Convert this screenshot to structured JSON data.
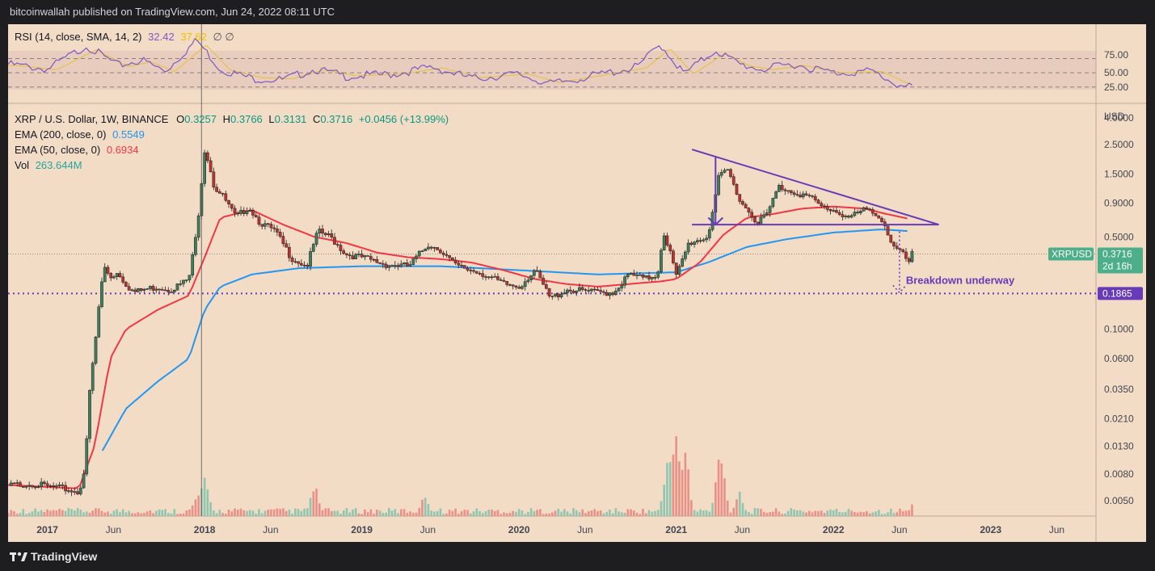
{
  "header": {
    "text": "bitcoinwallah published on TradingView.com, Jun 24, 2022 08:11 UTC"
  },
  "rsi": {
    "label": "RSI (14, close, SMA, 14, 2)",
    "value": "32.42",
    "sma_value": "37.62",
    "extra": "∅ ∅",
    "value_color": "#7e57c2",
    "sma_color": "#f0c000",
    "ticks": [
      "75.00",
      "50.00",
      "25.00"
    ],
    "levels": [
      70,
      50,
      30
    ]
  },
  "main_legend": {
    "symbol": "XRP / U.S. Dollar, 1W, BINANCE",
    "o_label": "O",
    "o": "0.3257",
    "h_label": "H",
    "h": "0.3766",
    "l_label": "L",
    "l": "0.3131",
    "c_label": "C",
    "c": "0.3716",
    "change": "+0.0456 (+13.99%)",
    "ema200_label": "EMA (200, close, 0)",
    "ema200_value": "0.5549",
    "ema200_color": "#2196f3",
    "ema50_label": "EMA (50, close, 0)",
    "ema50_value": "0.6934",
    "ema50_color": "#f23645",
    "vol_label": "Vol",
    "vol_value": "263.644M",
    "vol_color": "#26a69a"
  },
  "price_axis": {
    "currency": "USD",
    "ticks": [
      "4.0000",
      "2.5000",
      "1.5000",
      "0.9000",
      "0.5000",
      "0.1000",
      "0.0600",
      "0.0350",
      "0.0210",
      "0.0130",
      "0.0080",
      "0.0050"
    ],
    "tick_values": [
      4.0,
      2.5,
      1.5,
      0.9,
      0.5,
      0.1,
      0.06,
      0.035,
      0.021,
      0.013,
      0.008,
      0.005
    ]
  },
  "time_axis": {
    "ticks": [
      "2017",
      "Jun",
      "2018",
      "Jun",
      "2019",
      "Jun",
      "2020",
      "Jun",
      "2021",
      "Jun",
      "2022",
      "Jun",
      "2023",
      "Jun"
    ],
    "bold": [
      true,
      false,
      true,
      false,
      true,
      false,
      true,
      false,
      true,
      false,
      true,
      false,
      true,
      false
    ],
    "tick_dates": [
      2017.0,
      2017.42,
      2018.0,
      2018.42,
      2019.0,
      2019.42,
      2020.0,
      2020.42,
      2021.0,
      2021.42,
      2022.0,
      2022.42,
      2023.0,
      2023.42
    ]
  },
  "tags": {
    "symbol": "XRPUSD",
    "price": "0.3716",
    "countdown": "2d 16h",
    "support_price": "0.1865",
    "symbol_color": "#4caf8a",
    "support_color": "#673ab7"
  },
  "annotations": {
    "breakdown": "Breakdown underway",
    "color": "#673ab7"
  },
  "footer": {
    "brand": "TradingView"
  },
  "chart_data": {
    "type": "candlestick",
    "symbol": "XRP / U.S. Dollar",
    "interval": "1W",
    "exchange": "BINANCE",
    "yscale": "log",
    "ylim": [
      0.004,
      5.0
    ],
    "xlim": [
      2016.75,
      2023.67
    ],
    "support_level": 0.1865,
    "last_close": 0.3716,
    "price_path": [
      [
        2016.75,
        0.0065
      ],
      [
        2016.9,
        0.0068
      ],
      [
        2017.0,
        0.0064
      ],
      [
        2017.1,
        0.0062
      ],
      [
        2017.2,
        0.0058
      ],
      [
        2017.24,
        0.009
      ],
      [
        2017.27,
        0.035
      ],
      [
        2017.3,
        0.07
      ],
      [
        2017.33,
        0.16
      ],
      [
        2017.36,
        0.3
      ],
      [
        2017.4,
        0.25
      ],
      [
        2017.45,
        0.27
      ],
      [
        2017.5,
        0.22
      ],
      [
        2017.55,
        0.19
      ],
      [
        2017.62,
        0.2
      ],
      [
        2017.7,
        0.21
      ],
      [
        2017.78,
        0.2
      ],
      [
        2017.85,
        0.22
      ],
      [
        2017.9,
        0.24
      ],
      [
        2017.95,
        0.55
      ],
      [
        2018.0,
        2.3
      ],
      [
        2018.03,
        1.8
      ],
      [
        2018.06,
        1.2
      ],
      [
        2018.12,
        1.0
      ],
      [
        2018.2,
        0.7
      ],
      [
        2018.28,
        0.85
      ],
      [
        2018.35,
        0.65
      ],
      [
        2018.45,
        0.55
      ],
      [
        2018.55,
        0.35
      ],
      [
        2018.65,
        0.3
      ],
      [
        2018.72,
        0.55
      ],
      [
        2018.8,
        0.5
      ],
      [
        2018.9,
        0.37
      ],
      [
        2019.0,
        0.35
      ],
      [
        2019.15,
        0.31
      ],
      [
        2019.3,
        0.3
      ],
      [
        2019.42,
        0.44
      ],
      [
        2019.5,
        0.4
      ],
      [
        2019.6,
        0.3
      ],
      [
        2019.75,
        0.27
      ],
      [
        2019.9,
        0.22
      ],
      [
        2020.0,
        0.21
      ],
      [
        2020.1,
        0.28
      ],
      [
        2020.2,
        0.17
      ],
      [
        2020.3,
        0.2
      ],
      [
        2020.5,
        0.19
      ],
      [
        2020.6,
        0.19
      ],
      [
        2020.7,
        0.26
      ],
      [
        2020.8,
        0.24
      ],
      [
        2020.88,
        0.26
      ],
      [
        2020.92,
        0.55
      ],
      [
        2020.97,
        0.35
      ],
      [
        2021.0,
        0.25
      ],
      [
        2021.08,
        0.45
      ],
      [
        2021.2,
        0.5
      ],
      [
        2021.27,
        1.4
      ],
      [
        2021.33,
        1.6
      ],
      [
        2021.38,
        1.1
      ],
      [
        2021.45,
        0.8
      ],
      [
        2021.52,
        0.65
      ],
      [
        2021.58,
        0.75
      ],
      [
        2021.65,
        1.2
      ],
      [
        2021.75,
        1.1
      ],
      [
        2021.85,
        1.0
      ],
      [
        2021.92,
        0.85
      ],
      [
        2022.0,
        0.8
      ],
      [
        2022.1,
        0.7
      ],
      [
        2022.2,
        0.8
      ],
      [
        2022.28,
        0.75
      ],
      [
        2022.33,
        0.6
      ],
      [
        2022.38,
        0.42
      ],
      [
        2022.43,
        0.38
      ],
      [
        2022.48,
        0.32
      ],
      [
        2022.5,
        0.37
      ]
    ],
    "ema50": [
      [
        2016.75,
        0.0066
      ],
      [
        2017.2,
        0.0062
      ],
      [
        2017.3,
        0.013
      ],
      [
        2017.4,
        0.06
      ],
      [
        2017.5,
        0.1
      ],
      [
        2017.7,
        0.14
      ],
      [
        2017.9,
        0.18
      ],
      [
        2018.0,
        0.35
      ],
      [
        2018.1,
        0.7
      ],
      [
        2018.3,
        0.8
      ],
      [
        2018.5,
        0.62
      ],
      [
        2018.7,
        0.5
      ],
      [
        2018.9,
        0.45
      ],
      [
        2019.1,
        0.38
      ],
      [
        2019.3,
        0.35
      ],
      [
        2019.5,
        0.34
      ],
      [
        2019.7,
        0.32
      ],
      [
        2019.9,
        0.28
      ],
      [
        2020.1,
        0.24
      ],
      [
        2020.3,
        0.22
      ],
      [
        2020.5,
        0.21
      ],
      [
        2020.7,
        0.22
      ],
      [
        2020.9,
        0.23
      ],
      [
        2021.0,
        0.24
      ],
      [
        2021.15,
        0.32
      ],
      [
        2021.3,
        0.52
      ],
      [
        2021.45,
        0.7
      ],
      [
        2021.6,
        0.74
      ],
      [
        2021.8,
        0.82
      ],
      [
        2022.0,
        0.85
      ],
      [
        2022.2,
        0.82
      ],
      [
        2022.33,
        0.75
      ],
      [
        2022.47,
        0.69
      ]
    ],
    "ema200": [
      [
        2017.35,
        0.012
      ],
      [
        2017.5,
        0.025
      ],
      [
        2017.7,
        0.04
      ],
      [
        2017.9,
        0.06
      ],
      [
        2018.0,
        0.14
      ],
      [
        2018.1,
        0.21
      ],
      [
        2018.3,
        0.26
      ],
      [
        2018.6,
        0.29
      ],
      [
        2019.0,
        0.3
      ],
      [
        2019.5,
        0.3
      ],
      [
        2020.0,
        0.28
      ],
      [
        2020.5,
        0.26
      ],
      [
        2021.0,
        0.27
      ],
      [
        2021.2,
        0.32
      ],
      [
        2021.45,
        0.42
      ],
      [
        2021.7,
        0.48
      ],
      [
        2022.0,
        0.54
      ],
      [
        2022.3,
        0.57
      ],
      [
        2022.47,
        0.555
      ]
    ],
    "triangle": {
      "upper": [
        [
          2021.1,
          2.3
        ],
        [
          2022.67,
          0.62
        ]
      ],
      "lower": [
        [
          2021.1,
          0.62
        ],
        [
          2022.67,
          0.62
        ]
      ],
      "height_marker": [
        [
          2021.25,
          2.0
        ],
        [
          2021.25,
          0.62
        ]
      ]
    },
    "rsi_series": [
      [
        2016.75,
        62
      ],
      [
        2017.0,
        55
      ],
      [
        2017.25,
        88
      ],
      [
        2017.45,
        60
      ],
      [
        2017.6,
        68
      ],
      [
        2017.75,
        52
      ],
      [
        2017.95,
        96
      ],
      [
        2018.1,
        55
      ],
      [
        2018.3,
        42
      ],
      [
        2018.5,
        40
      ],
      [
        2018.7,
        55
      ],
      [
        2018.9,
        45
      ],
      [
        2019.2,
        48
      ],
      [
        2019.45,
        58
      ],
      [
        2019.7,
        42
      ],
      [
        2020.0,
        48
      ],
      [
        2020.2,
        34
      ],
      [
        2020.5,
        47
      ],
      [
        2020.75,
        58
      ],
      [
        2020.9,
        90
      ],
      [
        2021.05,
        48
      ],
      [
        2021.25,
        82
      ],
      [
        2021.4,
        62
      ],
      [
        2021.55,
        55
      ],
      [
        2021.75,
        62
      ],
      [
        2022.0,
        50
      ],
      [
        2022.25,
        52
      ],
      [
        2022.4,
        34
      ],
      [
        2022.47,
        29
      ],
      [
        2022.5,
        32
      ]
    ],
    "volume_peaks": [
      [
        2017.95,
        0.3
      ],
      [
        2018.0,
        0.45
      ],
      [
        2018.7,
        0.35
      ],
      [
        2019.4,
        0.28
      ],
      [
        2020.95,
        0.75
      ],
      [
        2021.0,
        1.0
      ],
      [
        2021.05,
        0.9
      ],
      [
        2021.28,
        0.8
      ],
      [
        2021.4,
        0.3
      ],
      [
        2022.5,
        0.12
      ]
    ]
  }
}
